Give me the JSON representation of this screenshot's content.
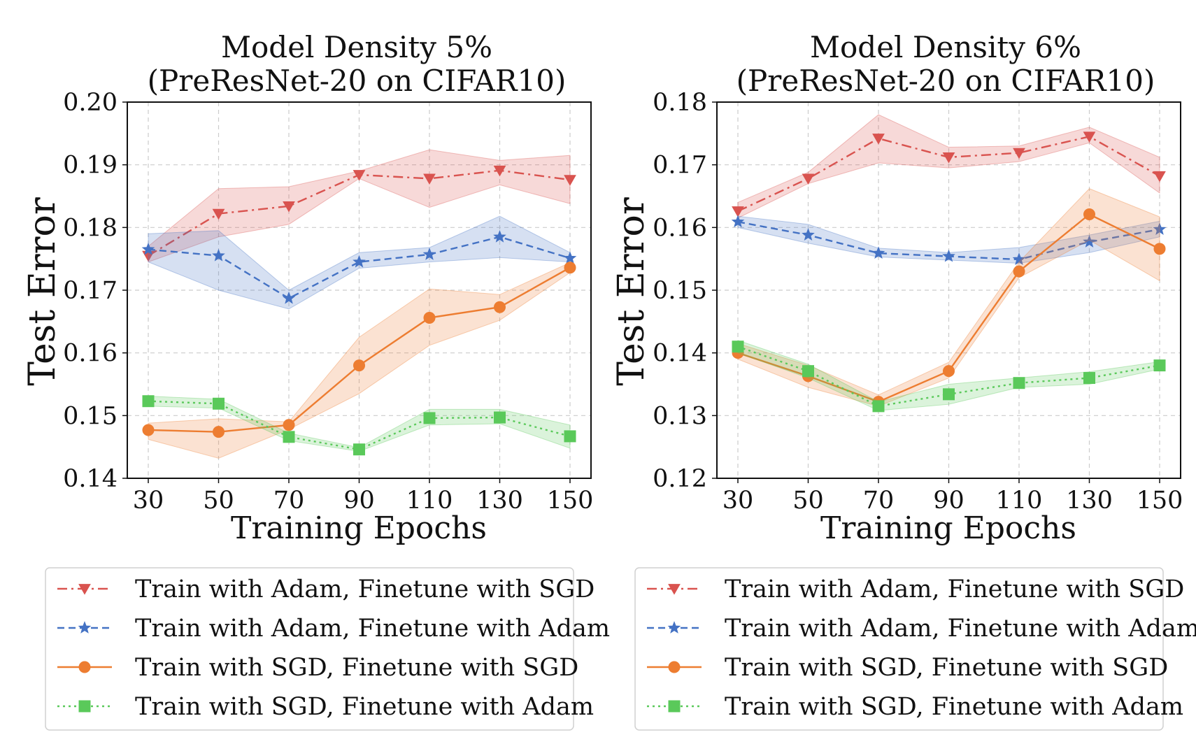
{
  "chart_data": [
    {
      "type": "line",
      "title_line1": "Model Density 5%",
      "title_line2": "(PreResNet-20 on CIFAR10)",
      "xlabel": "Training Epochs",
      "ylabel": "Test Error",
      "x": [
        30,
        50,
        70,
        90,
        110,
        130,
        150
      ],
      "xticks": [
        "30",
        "50",
        "70",
        "90",
        "110",
        "130",
        "150"
      ],
      "ylim": [
        0.14,
        0.2
      ],
      "yticks": [
        "0.14",
        "0.15",
        "0.16",
        "0.17",
        "0.18",
        "0.19",
        "0.20"
      ],
      "grid": true,
      "series": [
        {
          "name": "Train with Adam, Finetune with SGD",
          "color": "#d9534f",
          "style": "dashdot",
          "marker": "triangle-down",
          "values": [
            0.1755,
            0.1822,
            0.1834,
            0.1884,
            0.1878,
            0.1891,
            0.1876
          ],
          "lower": [
            0.1745,
            0.1785,
            0.1805,
            0.1878,
            0.1832,
            0.1868,
            0.1838
          ],
          "upper": [
            0.177,
            0.1862,
            0.1865,
            0.189,
            0.1924,
            0.1907,
            0.1915
          ]
        },
        {
          "name": "Train with Adam, Finetune with Adam",
          "color": "#4472c4",
          "style": "dashed",
          "marker": "star",
          "values": [
            0.1765,
            0.1755,
            0.1687,
            0.1745,
            0.1757,
            0.1785,
            0.1751
          ],
          "lower": [
            0.1745,
            0.17,
            0.167,
            0.1735,
            0.1745,
            0.1752,
            0.1745
          ],
          "upper": [
            0.179,
            0.1795,
            0.17,
            0.176,
            0.1768,
            0.1818,
            0.176
          ]
        },
        {
          "name": "Train with SGD, Finetune with SGD",
          "color": "#ed7d31",
          "style": "solid",
          "marker": "circle",
          "values": [
            0.1477,
            0.1474,
            0.1485,
            0.158,
            0.1656,
            0.1673,
            0.1736
          ],
          "lower": [
            0.1462,
            0.1432,
            0.1478,
            0.1535,
            0.1612,
            0.1652,
            0.1728
          ],
          "upper": [
            0.1488,
            0.1495,
            0.149,
            0.1625,
            0.1702,
            0.1693,
            0.1744
          ]
        },
        {
          "name": "Train with SGD, Finetune with Adam",
          "color": "#5ac95a",
          "style": "dotted",
          "marker": "square",
          "values": [
            0.1523,
            0.1519,
            0.1466,
            0.1446,
            0.1496,
            0.1497,
            0.1467
          ],
          "lower": [
            0.1515,
            0.1512,
            0.146,
            0.1443,
            0.1485,
            0.1487,
            0.1448
          ],
          "upper": [
            0.1531,
            0.1526,
            0.1472,
            0.1449,
            0.151,
            0.151,
            0.1485
          ]
        }
      ]
    },
    {
      "type": "line",
      "title_line1": "Model Density 6%",
      "title_line2": "(PreResNet-20 on CIFAR10)",
      "xlabel": "Training Epochs",
      "ylabel": "Test Error",
      "x": [
        30,
        50,
        70,
        90,
        110,
        130,
        150
      ],
      "xticks": [
        "30",
        "50",
        "70",
        "90",
        "110",
        "130",
        "150"
      ],
      "ylim": [
        0.12,
        0.18
      ],
      "yticks": [
        "0.12",
        "0.13",
        "0.14",
        "0.15",
        "0.16",
        "0.17",
        "0.18"
      ],
      "grid": true,
      "series": [
        {
          "name": "Train with Adam, Finetune with SGD",
          "color": "#d9534f",
          "style": "dashdot",
          "marker": "triangle-down",
          "values": [
            0.1626,
            0.1678,
            0.1742,
            0.1712,
            0.1719,
            0.1745,
            0.1682
          ],
          "lower": [
            0.1615,
            0.167,
            0.1703,
            0.1695,
            0.1705,
            0.1735,
            0.1655
          ],
          "upper": [
            0.164,
            0.1688,
            0.178,
            0.1728,
            0.173,
            0.176,
            0.1712
          ]
        },
        {
          "name": "Train with Adam, Finetune with Adam",
          "color": "#4472c4",
          "style": "dashed",
          "marker": "star",
          "values": [
            0.1609,
            0.1588,
            0.1559,
            0.1554,
            0.1549,
            0.1577,
            0.1597
          ],
          "lower": [
            0.16,
            0.1575,
            0.1553,
            0.1548,
            0.1543,
            0.156,
            0.1585
          ],
          "upper": [
            0.1618,
            0.1605,
            0.1567,
            0.156,
            0.1568,
            0.1588,
            0.161
          ]
        },
        {
          "name": "Train with SGD, Finetune with SGD",
          "color": "#ed7d31",
          "style": "solid",
          "marker": "circle",
          "values": [
            0.14,
            0.1363,
            0.1322,
            0.1371,
            0.153,
            0.1621,
            0.1566
          ],
          "lower": [
            0.139,
            0.1345,
            0.1315,
            0.136,
            0.152,
            0.158,
            0.1515
          ],
          "upper": [
            0.1415,
            0.138,
            0.1333,
            0.1385,
            0.1545,
            0.1662,
            0.1617
          ]
        },
        {
          "name": "Train with SGD, Finetune with Adam",
          "color": "#5ac95a",
          "style": "dotted",
          "marker": "square",
          "values": [
            0.141,
            0.1371,
            0.1315,
            0.1334,
            0.1352,
            0.136,
            0.138
          ],
          "lower": [
            0.14,
            0.136,
            0.1308,
            0.1318,
            0.1345,
            0.135,
            0.1374
          ],
          "upper": [
            0.142,
            0.1382,
            0.1322,
            0.135,
            0.136,
            0.137,
            0.1386
          ]
        }
      ]
    }
  ],
  "legends": [
    {
      "entries": [
        "Train with Adam, Finetune with SGD",
        "Train with Adam, Finetune with Adam",
        "Train with SGD, Finetune with SGD",
        "Train with SGD, Finetune with Adam"
      ]
    },
    {
      "entries": [
        "Train with Adam, Finetune with SGD",
        "Train with Adam, Finetune with Adam",
        "Train with SGD, Finetune with SGD",
        "Train with SGD, Finetune with Adam"
      ]
    }
  ]
}
